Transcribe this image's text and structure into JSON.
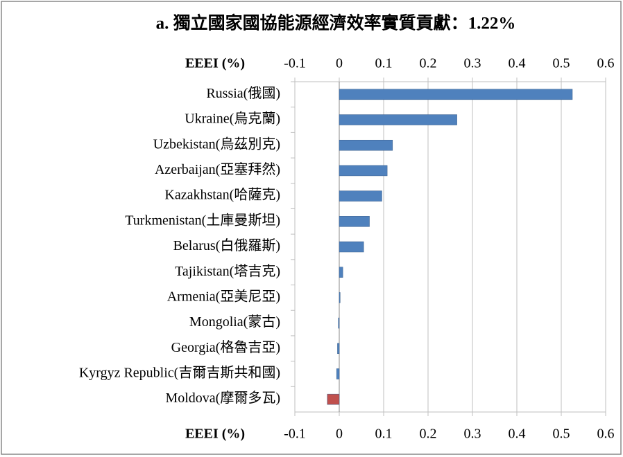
{
  "chart_data": {
    "type": "barh",
    "title": "a. 獨立國家國協能源經濟效率實質貢獻：1.22%",
    "xlabel": "EEEI (%)",
    "categories": [
      "Russia(俄國)",
      "Ukraine(烏克蘭)",
      "Uzbekistan(烏茲別克)",
      "Azerbaijan(亞塞拜然)",
      "Kazakhstan(哈薩克)",
      "Turkmenistan(土庫曼斯坦)",
      "Belarus(白俄羅斯)",
      "Tajikistan(塔吉克)",
      "Armenia(亞美尼亞)",
      "Mongolia(蒙古)",
      "Georgia(格魯吉亞)",
      "Kyrgyz Republic(吉爾吉斯共和國)",
      "Moldova(摩爾多瓦)"
    ],
    "values": [
      0.525,
      0.265,
      0.12,
      0.108,
      0.096,
      0.068,
      0.055,
      0.008,
      0.002,
      -0.002,
      -0.004,
      -0.006,
      -0.027
    ],
    "colors": [
      "#4f81bd",
      "#4f81bd",
      "#4f81bd",
      "#4f81bd",
      "#4f81bd",
      "#4f81bd",
      "#4f81bd",
      "#4f81bd",
      "#4f81bd",
      "#4f81bd",
      "#4f81bd",
      "#4f81bd",
      "#c0504d"
    ],
    "xlim": [
      -0.1,
      0.6
    ],
    "xticks": [
      -0.1,
      0,
      0.1,
      0.2,
      0.3,
      0.4,
      0.5,
      0.6
    ],
    "grid": true
  }
}
